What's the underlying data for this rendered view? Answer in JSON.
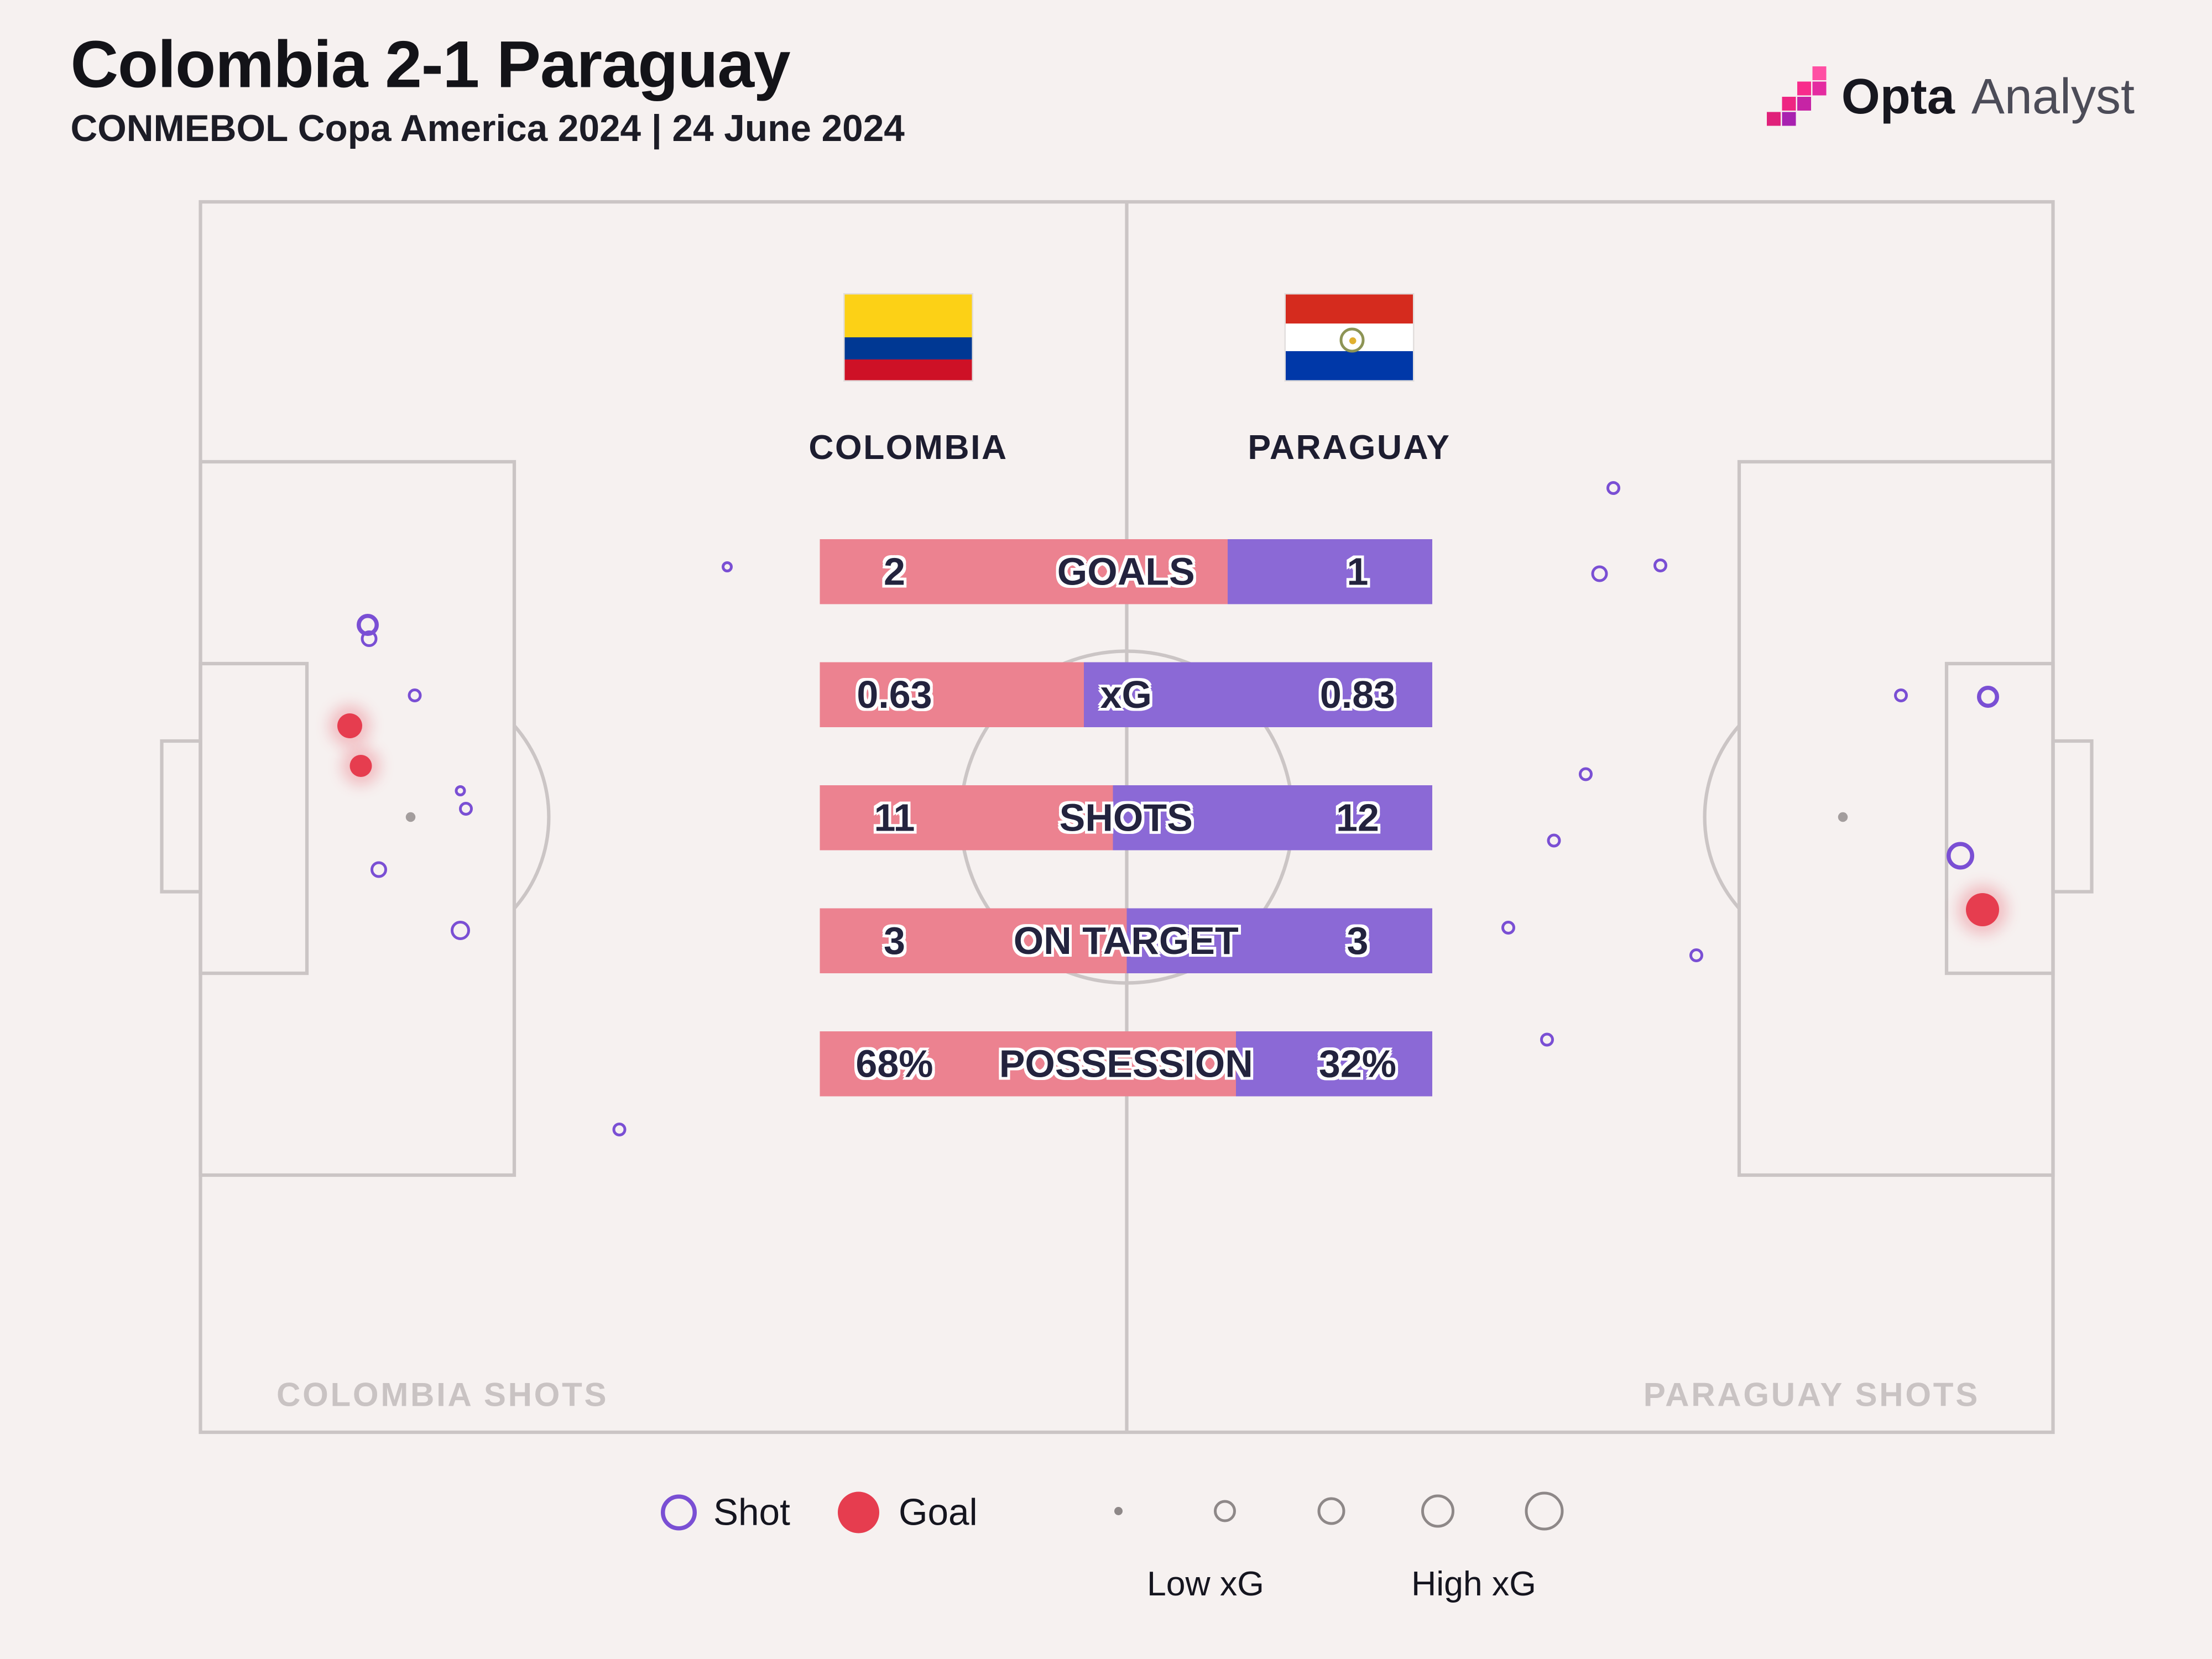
{
  "header": {
    "title": "Colombia 2-1 Paraguay",
    "subtitle": "CONMEBOL Copa America 2024 | 24 June 2024"
  },
  "logo": {
    "brand": "Opta",
    "suffix": "Analyst"
  },
  "teams": {
    "home": {
      "name": "COLOMBIA"
    },
    "away": {
      "name": "PARAGUAY"
    }
  },
  "pitch": {
    "home_shots_label": "COLOMBIA SHOTS",
    "away_shots_label": "PARAGUAY SHOTS"
  },
  "stats": [
    {
      "label": "GOALS",
      "home": "2",
      "away": "1",
      "home_val": 2,
      "away_val": 1
    },
    {
      "label": "xG",
      "home": "0.63",
      "away": "0.83",
      "home_val": 0.63,
      "away_val": 0.83
    },
    {
      "label": "SHOTS",
      "home": "11",
      "away": "12",
      "home_val": 11,
      "away_val": 12
    },
    {
      "label": "ON TARGET",
      "home": "3",
      "away": "3",
      "home_val": 3,
      "away_val": 3
    },
    {
      "label": "POSSESSION",
      "home": "68%",
      "away": "32%",
      "home_val": 68,
      "away_val": 32
    }
  ],
  "legend": {
    "shot_label": "Shot",
    "goal_label": "Goal",
    "low_label": "Low xG",
    "high_label": "High xG",
    "size_scale": [
      3,
      8,
      10,
      12,
      14
    ]
  },
  "colors": {
    "home_bar": "#EC8290",
    "away_bar": "#8B69D6",
    "goal_marker": "#E63D4F",
    "shot_marker_stroke": "#7A4FD4",
    "pitch_line": "#CBC5C5",
    "background": "#F6F1F0"
  },
  "chart_data": [
    {
      "type": "bar",
      "title": "Colombia 2-1 Paraguay — match stats",
      "categories": [
        "GOALS",
        "xG",
        "SHOTS",
        "ON TARGET",
        "POSSESSION"
      ],
      "series": [
        {
          "name": "Colombia",
          "values": [
            2,
            0.63,
            11,
            3,
            68
          ]
        },
        {
          "name": "Paraguay",
          "values": [
            1,
            0.83,
            12,
            3,
            32
          ]
        }
      ],
      "layout": "two-sided proportional bars centered on pitch halfway line; possession values are percentages"
    },
    {
      "type": "scatter",
      "title": "Shot map (marker radius encodes xG; open purple = shot, filled red = goal)",
      "series": [
        {
          "name": "Colombia shots",
          "points": [
            {
              "x": 266,
              "y": 452,
              "r": 8,
              "kind": "shot"
            },
            {
              "x": 267,
              "y": 462,
              "r": 6,
              "kind": "shot"
            },
            {
              "x": 300,
              "y": 503,
              "r": 5,
              "kind": "shot"
            },
            {
              "x": 253,
              "y": 525,
              "r": 9,
              "kind": "goal"
            },
            {
              "x": 261,
              "y": 554,
              "r": 8,
              "kind": "goal"
            },
            {
              "x": 333,
              "y": 572,
              "r": 4,
              "kind": "shot"
            },
            {
              "x": 337,
              "y": 585,
              "r": 5,
              "kind": "shot"
            },
            {
              "x": 274,
              "y": 629,
              "r": 6,
              "kind": "shot"
            },
            {
              "x": 333,
              "y": 673,
              "r": 7,
              "kind": "shot"
            },
            {
              "x": 448,
              "y": 817,
              "r": 5,
              "kind": "shot"
            },
            {
              "x": 526,
              "y": 410,
              "r": 4,
              "kind": "shot"
            }
          ]
        },
        {
          "name": "Paraguay shots",
          "points": [
            {
              "x": 1167,
              "y": 353,
              "r": 5,
              "kind": "shot"
            },
            {
              "x": 1157,
              "y": 415,
              "r": 6,
              "kind": "shot"
            },
            {
              "x": 1201,
              "y": 409,
              "r": 5,
              "kind": "shot"
            },
            {
              "x": 1375,
              "y": 503,
              "r": 5,
              "kind": "shot"
            },
            {
              "x": 1438,
              "y": 504,
              "r": 8,
              "kind": "shot"
            },
            {
              "x": 1147,
              "y": 560,
              "r": 5,
              "kind": "shot"
            },
            {
              "x": 1124,
              "y": 608,
              "r": 5,
              "kind": "shot"
            },
            {
              "x": 1091,
              "y": 671,
              "r": 5,
              "kind": "shot"
            },
            {
              "x": 1227,
              "y": 691,
              "r": 5,
              "kind": "shot"
            },
            {
              "x": 1119,
              "y": 752,
              "r": 5,
              "kind": "shot"
            },
            {
              "x": 1418,
              "y": 619,
              "r": 10,
              "kind": "shot"
            },
            {
              "x": 1434,
              "y": 658,
              "r": 12,
              "kind": "goal"
            }
          ]
        }
      ]
    }
  ]
}
